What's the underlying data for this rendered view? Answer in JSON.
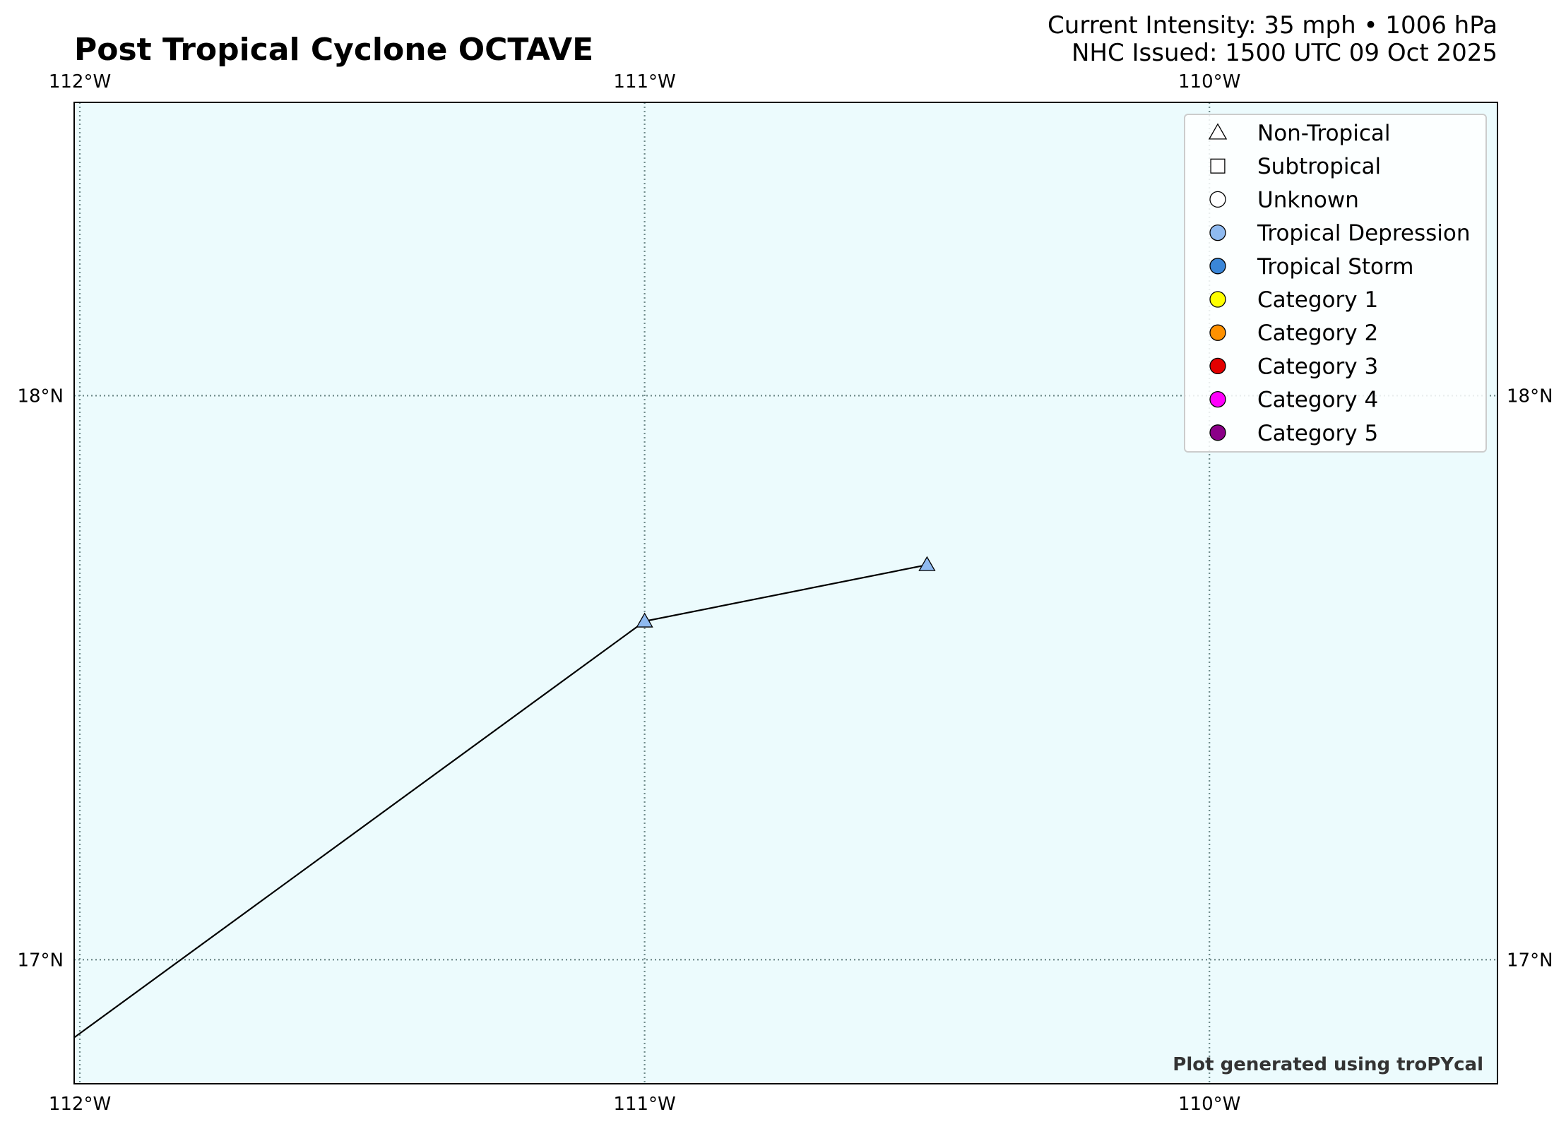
{
  "header": {
    "title": "Post Tropical Cyclone OCTAVE",
    "intensity": "Current Intensity: 35 mph • 1006 hPa",
    "issued": "NHC Issued: 1500 UTC 09 Oct 2025"
  },
  "map": {
    "lon_range": [
      -112.01,
      -109.49
    ],
    "lat_range": [
      16.78,
      18.52
    ],
    "ocean_color": "#ecfbfd",
    "grid": "on",
    "lon_ticks": [
      {
        "value": -112,
        "label": "112°W"
      },
      {
        "value": -111,
        "label": "111°W"
      },
      {
        "value": -110,
        "label": "110°W"
      }
    ],
    "lat_ticks": [
      {
        "value": 18,
        "label": "18°N"
      },
      {
        "value": 17,
        "label": "17°N"
      }
    ]
  },
  "track": {
    "line_color": "#000000",
    "points": [
      {
        "lon": -112.3,
        "lat": 16.65,
        "marker": "none"
      },
      {
        "lon": -111.0,
        "lat": 17.6,
        "marker": "triangle",
        "color": "#8fbaf0"
      },
      {
        "lon": -110.5,
        "lat": 17.7,
        "marker": "triangle",
        "color": "#8fbaf0"
      }
    ]
  },
  "legend": {
    "placement": "top-right",
    "items": [
      {
        "label": "Non-Tropical",
        "shape": "triangle",
        "color": "#ffffff"
      },
      {
        "label": "Subtropical",
        "shape": "square",
        "color": "#ffffff"
      },
      {
        "label": "Unknown",
        "shape": "circle",
        "color": "#ffffff"
      },
      {
        "label": "Tropical Depression",
        "shape": "circle",
        "color": "#8fbaf0"
      },
      {
        "label": "Tropical Storm",
        "shape": "circle",
        "color": "#3a86d8"
      },
      {
        "label": "Category 1",
        "shape": "circle",
        "color": "#ffff00"
      },
      {
        "label": "Category 2",
        "shape": "circle",
        "color": "#ff9100"
      },
      {
        "label": "Category 3",
        "shape": "circle",
        "color": "#e30000"
      },
      {
        "label": "Category 4",
        "shape": "circle",
        "color": "#ff00fc"
      },
      {
        "label": "Category 5",
        "shape": "circle",
        "color": "#8b0088"
      }
    ]
  },
  "credit": "Plot generated using troPYcal"
}
